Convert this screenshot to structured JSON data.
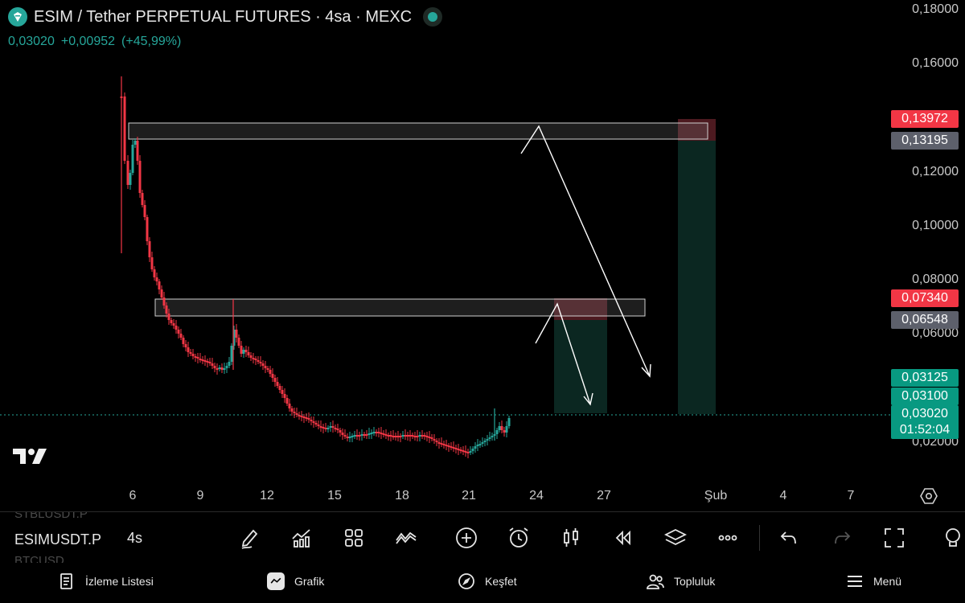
{
  "header": {
    "symbol_title": "ESIM / Tether PERPETUAL FUTURES · 4sa · MEXC",
    "last_price": "0,03020",
    "change": "+0,00952",
    "change_pct": "(+45,99%)"
  },
  "price_axis": {
    "labels": [
      "0,18000",
      "0,16000",
      "0,12000",
      "0,10000",
      "0,08000",
      "0,06000",
      "0,02000"
    ],
    "tags": {
      "upper_stop": "0,13972",
      "upper_entry": "0,13195",
      "lower_stop": "0,07340",
      "lower_entry": "0,06548",
      "target_1": "0,03125",
      "target_2": "0,03100",
      "current_price": "0,03020",
      "countdown": "01:52:04"
    }
  },
  "time_axis": {
    "labels": [
      "6",
      "9",
      "12",
      "15",
      "18",
      "21",
      "24",
      "27",
      "Şub",
      "4",
      "7"
    ]
  },
  "chart_data": {
    "type": "candlestick",
    "y_axis_range": [
      0.02,
      0.18
    ],
    "current_price": 0.0302,
    "zones": [
      {
        "name": "upper-resistance",
        "low": 0.132,
        "high": 0.138
      },
      {
        "name": "lower-resistance",
        "low": 0.0665,
        "high": 0.0728
      }
    ],
    "short_positions": [
      {
        "entry": 0.06548,
        "stop": 0.0734,
        "target": 0.03125
      },
      {
        "entry": 0.13195,
        "stop": 0.13972,
        "target": 0.031
      }
    ]
  },
  "toolbar": {
    "symbols_faded": [
      "STBLUSDT.P",
      "BTCUSD"
    ],
    "active_symbol": "ESIMUSDT.P",
    "interval": "4s"
  },
  "bottom_nav": {
    "watchlist": "İzleme Listesi",
    "chart": "Grafik",
    "explore": "Keşfet",
    "community": "Topluluk",
    "menu": "Menü"
  },
  "colors": {
    "up": "#26a69a",
    "down": "#f23645",
    "background": "#000000"
  }
}
